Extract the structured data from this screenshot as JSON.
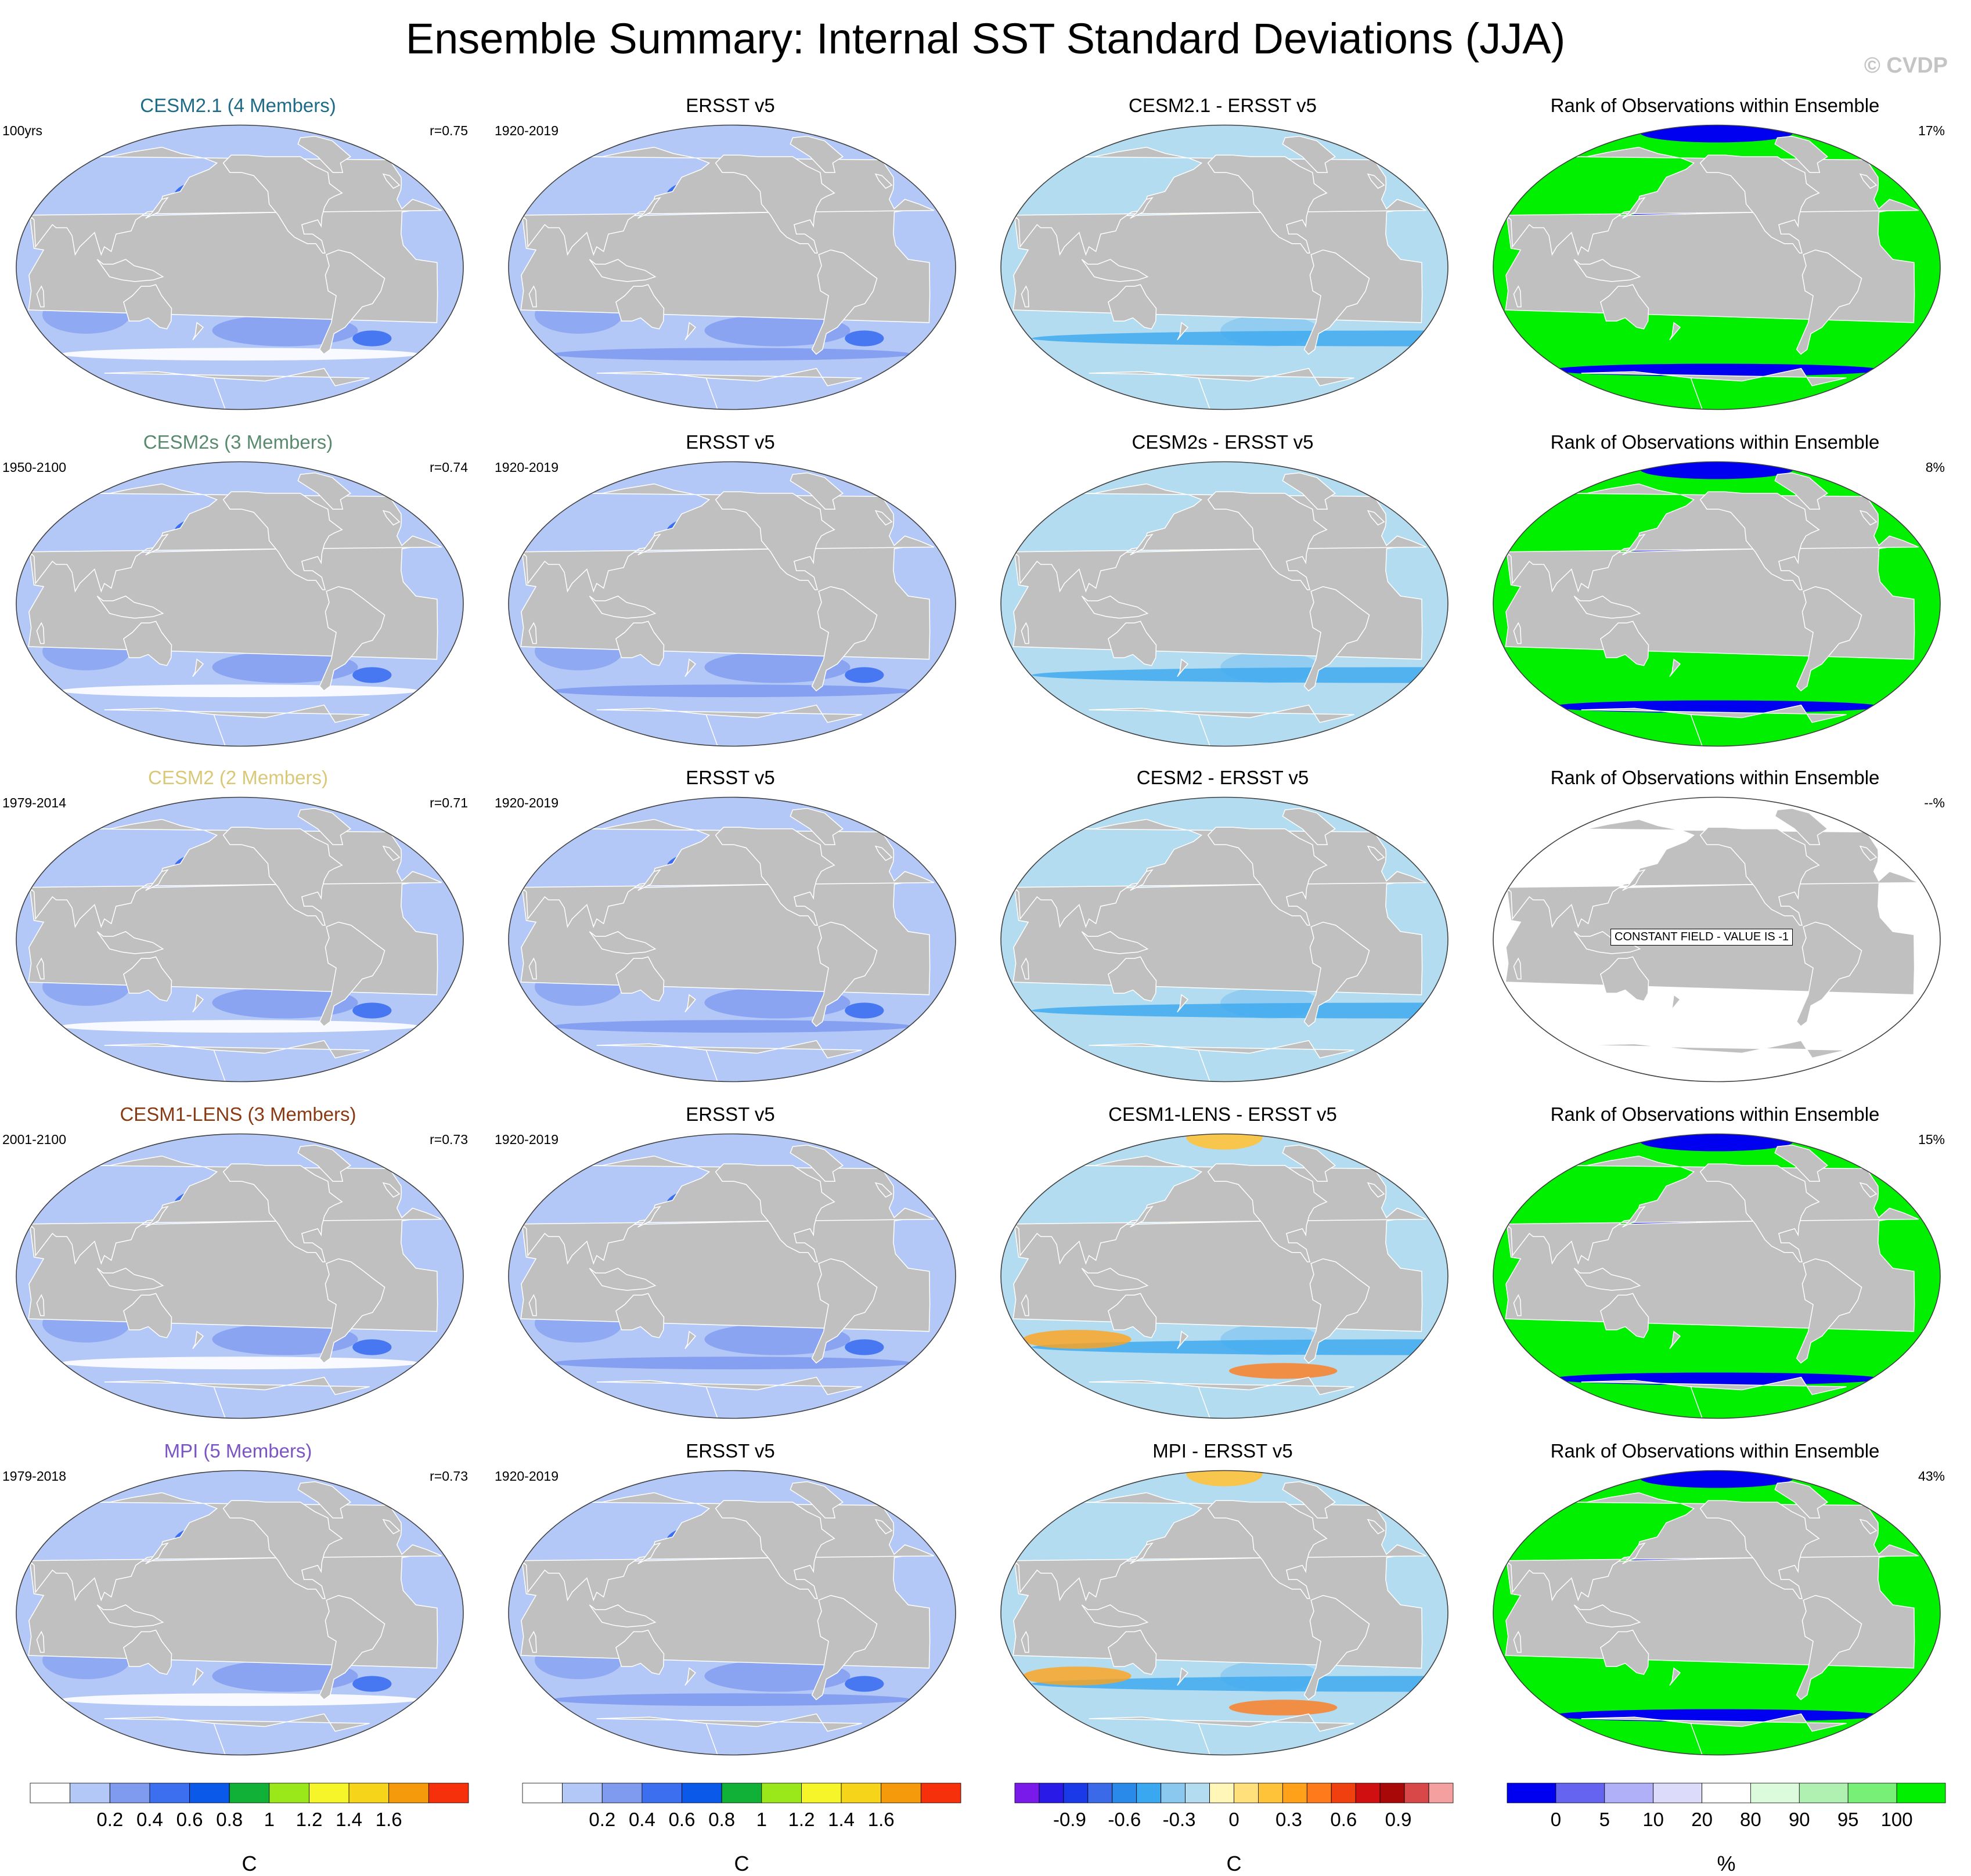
{
  "title": "Ensemble Summary: Internal SST Standard Deviations (JJA)",
  "credit": "© CVDP",
  "chart_data": {
    "type": "heatmap",
    "rows": [
      {
        "model": "CESM2.1 (4 Members)",
        "model_color": "#1d6b86",
        "period": "100yrs",
        "r": "r=0.75",
        "obs_title": "ERSST v5",
        "obs_period": "1920-2019",
        "diff_title": "CESM2.1 - ERSST v5",
        "rank_title": "Rank of Observations within Ensemble",
        "rank_pct": "17%",
        "constant_field": ""
      },
      {
        "model": "CESM2s (3 Members)",
        "model_color": "#5a8a6e",
        "period": "1950-2100",
        "r": "r=0.74",
        "obs_title": "ERSST v5",
        "obs_period": "1920-2019",
        "diff_title": "CESM2s - ERSST v5",
        "rank_title": "Rank of Observations within Ensemble",
        "rank_pct": "8%",
        "constant_field": ""
      },
      {
        "model": "CESM2 (2 Members)",
        "model_color": "#d9c877",
        "period": "1979-2014",
        "r": "r=0.71",
        "obs_title": "ERSST v5",
        "obs_period": "1920-2019",
        "diff_title": "CESM2 - ERSST v5",
        "rank_title": "Rank of Observations within Ensemble",
        "rank_pct": "--%",
        "constant_field": "CONSTANT FIELD - VALUE IS -1"
      },
      {
        "model": "CESM1-LENS (3 Members)",
        "model_color": "#8a3a12",
        "period": "2001-2100",
        "r": "r=0.73",
        "obs_title": "ERSST v5",
        "obs_period": "1920-2019",
        "diff_title": "CESM1-LENS - ERSST v5",
        "rank_title": "Rank of Observations within Ensemble",
        "rank_pct": "15%",
        "constant_field": ""
      },
      {
        "model": "MPI (5 Members)",
        "model_color": "#7b55c4",
        "period": "1979-2018",
        "r": "r=0.73",
        "obs_title": "ERSST v5",
        "obs_period": "1920-2019",
        "diff_title": "MPI - ERSST v5",
        "rank_title": "Rank of Observations within Ensemble",
        "rank_pct": "43%",
        "constant_field": ""
      }
    ],
    "colorbars": [
      {
        "unit": "C",
        "tick_labels": [
          "0.2",
          "0.4",
          "0.6",
          "0.8",
          "1",
          "1.2",
          "1.4",
          "1.6"
        ],
        "colors": [
          "#ffffff",
          "#b4c8f8",
          "#7f9bf0",
          "#3b6ff0",
          "#0a59e8",
          "#11b036",
          "#9be81a",
          "#f5f52a",
          "#f5d41a",
          "#f59a0a",
          "#f5300a"
        ]
      },
      {
        "unit": "C",
        "tick_labels": [
          "0.2",
          "0.4",
          "0.6",
          "0.8",
          "1",
          "1.2",
          "1.4",
          "1.6"
        ],
        "colors": [
          "#ffffff",
          "#b4c8f8",
          "#7f9bf0",
          "#3b6ff0",
          "#0a59e8",
          "#11b036",
          "#9be81a",
          "#f5f52a",
          "#f5d41a",
          "#f59a0a",
          "#f5300a"
        ]
      },
      {
        "unit": "C",
        "tick_labels": [
          "-0.9",
          "-0.6",
          "-0.3",
          "0",
          "0.3",
          "0.6",
          "0.9"
        ],
        "colors": [
          "#7a1aea",
          "#2a1ae8",
          "#1a3ae8",
          "#3a6ae8",
          "#2a8aea",
          "#3aa8f0",
          "#8ac8f0",
          "#b4dcf0",
          "#fff6b8",
          "#ffe07a",
          "#ffc33a",
          "#ffa21a",
          "#ff7a1a",
          "#f04010",
          "#d01010",
          "#a80808",
          "#d84848",
          "#f4a0a0"
        ]
      },
      {
        "unit": "%",
        "tick_labels": [
          "0",
          "5",
          "10",
          "20",
          "80",
          "90",
          "95",
          "100"
        ],
        "colors": [
          "#0000f0",
          "#6464f0",
          "#b0b0f8",
          "#dcdcfa",
          "#ffffff",
          "#dcfadc",
          "#b0f0b0",
          "#78f078",
          "#00f000"
        ]
      }
    ]
  }
}
